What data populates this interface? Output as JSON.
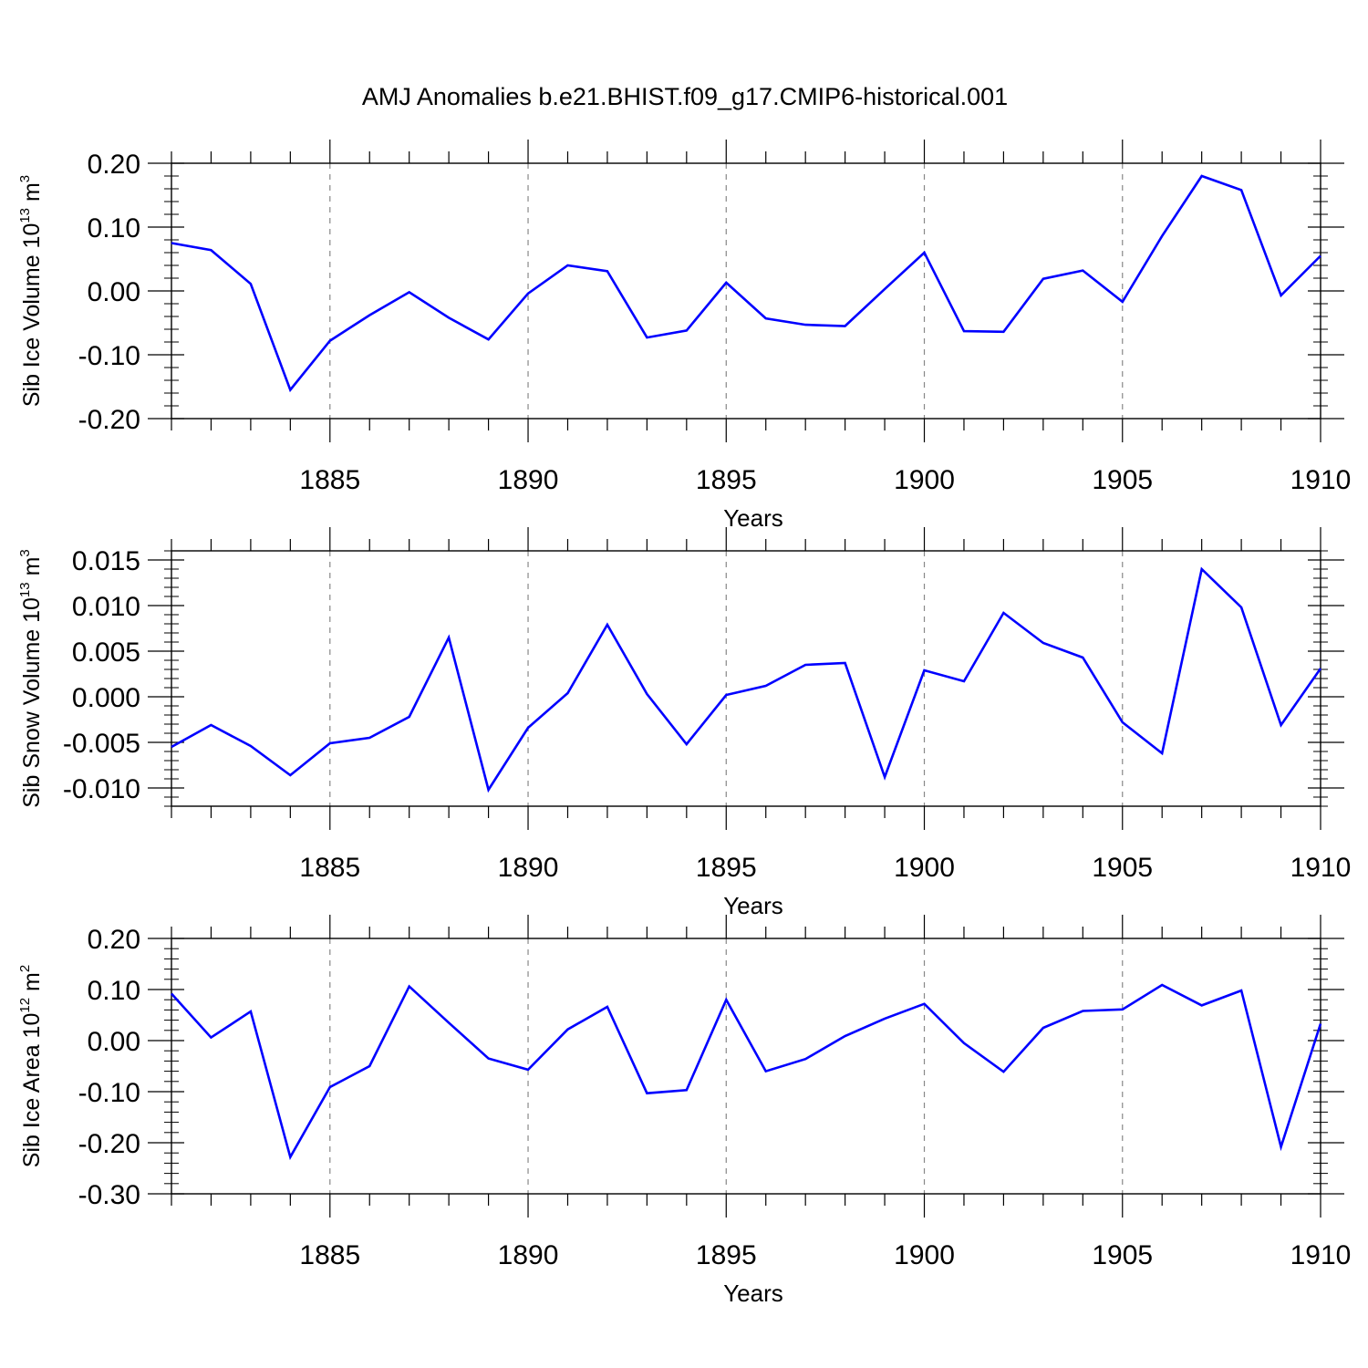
{
  "title": "AMJ Anomalies b.e21.BHIST.f09_g17.CMIP6-historical.001",
  "colors": {
    "line": "#0000ff",
    "axis": "#000000",
    "grid": "#888888"
  },
  "chart_data": [
    {
      "type": "line",
      "ylabel": {
        "text": "Sib Ice Volume 10",
        "exp": "13",
        "unit": " m",
        "unit_exp": "3"
      },
      "xlabel": "Years",
      "xlim": [
        1881,
        1910
      ],
      "ylim": [
        -0.2,
        0.2
      ],
      "yticks": [
        -0.2,
        -0.1,
        0.0,
        0.1,
        0.2
      ],
      "ytick_labels": [
        "-0.20",
        "-0.10",
        "0.00",
        "0.10",
        "0.20"
      ],
      "xticks": [
        1885,
        1890,
        1895,
        1900,
        1905,
        1910
      ],
      "xtick_labels": [
        "1885",
        "1890",
        "1895",
        "1900",
        "1905",
        "1910"
      ],
      "grid": "vertical-dashed",
      "x": [
        1881,
        1882,
        1883,
        1884,
        1885,
        1886,
        1887,
        1888,
        1889,
        1890,
        1891,
        1892,
        1893,
        1894,
        1895,
        1896,
        1897,
        1898,
        1899,
        1900,
        1901,
        1902,
        1903,
        1904,
        1905,
        1906,
        1907,
        1908,
        1909,
        1910
      ],
      "values": [
        0.075,
        0.064,
        0.011,
        -0.155,
        -0.078,
        -0.038,
        -0.002,
        -0.042,
        -0.076,
        -0.004,
        0.04,
        0.031,
        -0.073,
        -0.062,
        0.013,
        -0.043,
        -0.053,
        -0.055,
        0.003,
        0.06,
        -0.063,
        -0.064,
        0.019,
        0.032,
        -0.017,
        0.086,
        0.18,
        0.158,
        -0.007,
        0.055
      ]
    },
    {
      "type": "line",
      "ylabel": {
        "text": "Sib Snow Volume 10",
        "exp": "13",
        "unit": " m",
        "unit_exp": "3"
      },
      "xlabel": "Years",
      "xlim": [
        1881,
        1910
      ],
      "ylim": [
        -0.012,
        0.016
      ],
      "yticks": [
        -0.01,
        -0.005,
        0.0,
        0.005,
        0.01,
        0.015
      ],
      "ytick_labels": [
        "-0.010",
        "-0.005",
        "0.000",
        "0.005",
        "0.010",
        "0.015"
      ],
      "xticks": [
        1885,
        1890,
        1895,
        1900,
        1905,
        1910
      ],
      "xtick_labels": [
        "1885",
        "1890",
        "1895",
        "1900",
        "1905",
        "1910"
      ],
      "grid": "vertical-dashed",
      "x": [
        1881,
        1882,
        1883,
        1884,
        1885,
        1886,
        1887,
        1888,
        1889,
        1890,
        1891,
        1892,
        1893,
        1894,
        1895,
        1896,
        1897,
        1898,
        1899,
        1900,
        1901,
        1902,
        1903,
        1904,
        1905,
        1906,
        1907,
        1908,
        1909,
        1910
      ],
      "values": [
        -0.0055,
        -0.0031,
        -0.0054,
        -0.0086,
        -0.0051,
        -0.0045,
        -0.0022,
        0.0065,
        -0.0102,
        -0.0034,
        0.0004,
        0.0079,
        0.0003,
        -0.0052,
        0.0002,
        0.0012,
        0.0035,
        0.0037,
        -0.0088,
        0.0029,
        0.0017,
        0.0092,
        0.0059,
        0.0043,
        -0.0028,
        -0.0062,
        0.014,
        0.0098,
        -0.0031,
        0.0031
      ]
    },
    {
      "type": "line",
      "ylabel": {
        "text": "Sib Ice Area 10",
        "exp": "12",
        "unit": " m",
        "unit_exp": "2"
      },
      "xlabel": "Years",
      "xlim": [
        1881,
        1910
      ],
      "ylim": [
        -0.3,
        0.2
      ],
      "yticks": [
        -0.3,
        -0.2,
        -0.1,
        0.0,
        0.1,
        0.2
      ],
      "ytick_labels": [
        "-0.30",
        "-0.20",
        "-0.10",
        "0.00",
        "0.10",
        "0.20"
      ],
      "xticks": [
        1885,
        1890,
        1895,
        1900,
        1905,
        1910
      ],
      "xtick_labels": [
        "1885",
        "1890",
        "1895",
        "1900",
        "1905",
        "1910"
      ],
      "grid": "vertical-dashed",
      "x": [
        1881,
        1882,
        1883,
        1884,
        1885,
        1886,
        1887,
        1888,
        1889,
        1890,
        1891,
        1892,
        1893,
        1894,
        1895,
        1896,
        1897,
        1898,
        1899,
        1900,
        1901,
        1902,
        1903,
        1904,
        1905,
        1906,
        1907,
        1908,
        1909,
        1910
      ],
      "values": [
        0.092,
        0.006,
        0.057,
        -0.228,
        -0.091,
        -0.05,
        0.106,
        0.035,
        -0.035,
        -0.057,
        0.022,
        0.066,
        -0.103,
        -0.097,
        0.08,
        -0.06,
        -0.036,
        0.009,
        0.043,
        0.072,
        -0.005,
        -0.061,
        0.025,
        0.058,
        0.061,
        0.109,
        0.069,
        0.098,
        -0.208,
        0.033
      ]
    }
  ]
}
